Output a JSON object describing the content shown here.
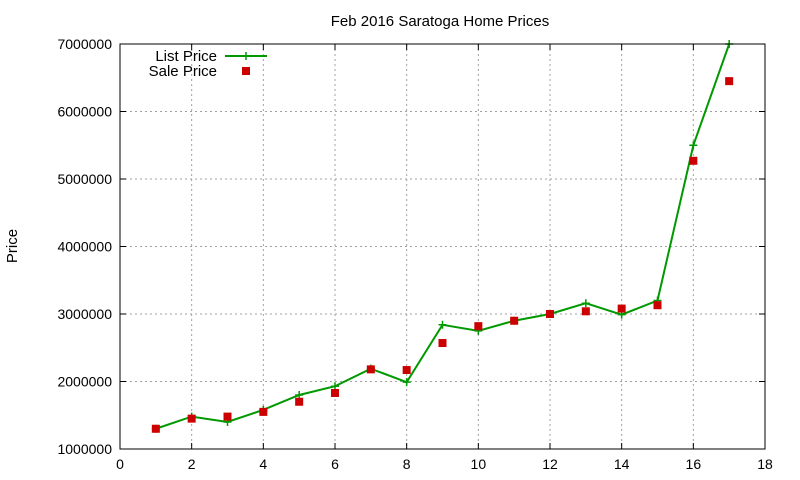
{
  "chart_data": {
    "type": "line",
    "title": "Feb 2016 Saratoga Home Prices",
    "xlabel": "",
    "ylabel": "Price",
    "xlim": [
      0,
      18
    ],
    "ylim": [
      1000000,
      7000000
    ],
    "x_ticks": [
      0,
      2,
      4,
      6,
      8,
      10,
      12,
      14,
      16,
      18
    ],
    "y_ticks": [
      1000000,
      2000000,
      3000000,
      4000000,
      5000000,
      6000000,
      7000000
    ],
    "x_tick_labels": [
      "0",
      "2",
      "4",
      "6",
      "8",
      "10",
      "12",
      "14",
      "16",
      "18"
    ],
    "y_tick_labels": [
      "1000000",
      "2000000",
      "3000000",
      "4000000",
      "5000000",
      "6000000",
      "7000000"
    ],
    "grid": true,
    "legend_position": "top-left",
    "x": [
      1,
      2,
      3,
      4,
      5,
      6,
      7,
      8,
      9,
      10,
      11,
      12,
      13,
      14,
      15,
      16,
      17
    ],
    "series": [
      {
        "name": "List Price",
        "style": "line+cross",
        "color": "#009900",
        "values": [
          1300000,
          1480000,
          1400000,
          1580000,
          1800000,
          1930000,
          2190000,
          1990000,
          2840000,
          2750000,
          2900000,
          3000000,
          3160000,
          2990000,
          3200000,
          5500000,
          7000000
        ]
      },
      {
        "name": "Sale Price",
        "style": "square",
        "color": "#cc0000",
        "values": [
          1300000,
          1450000,
          1480000,
          1550000,
          1700000,
          1830000,
          2180000,
          2170000,
          2570000,
          2820000,
          2900000,
          3000000,
          3040000,
          3080000,
          3130000,
          5270000,
          6450000
        ]
      }
    ]
  }
}
